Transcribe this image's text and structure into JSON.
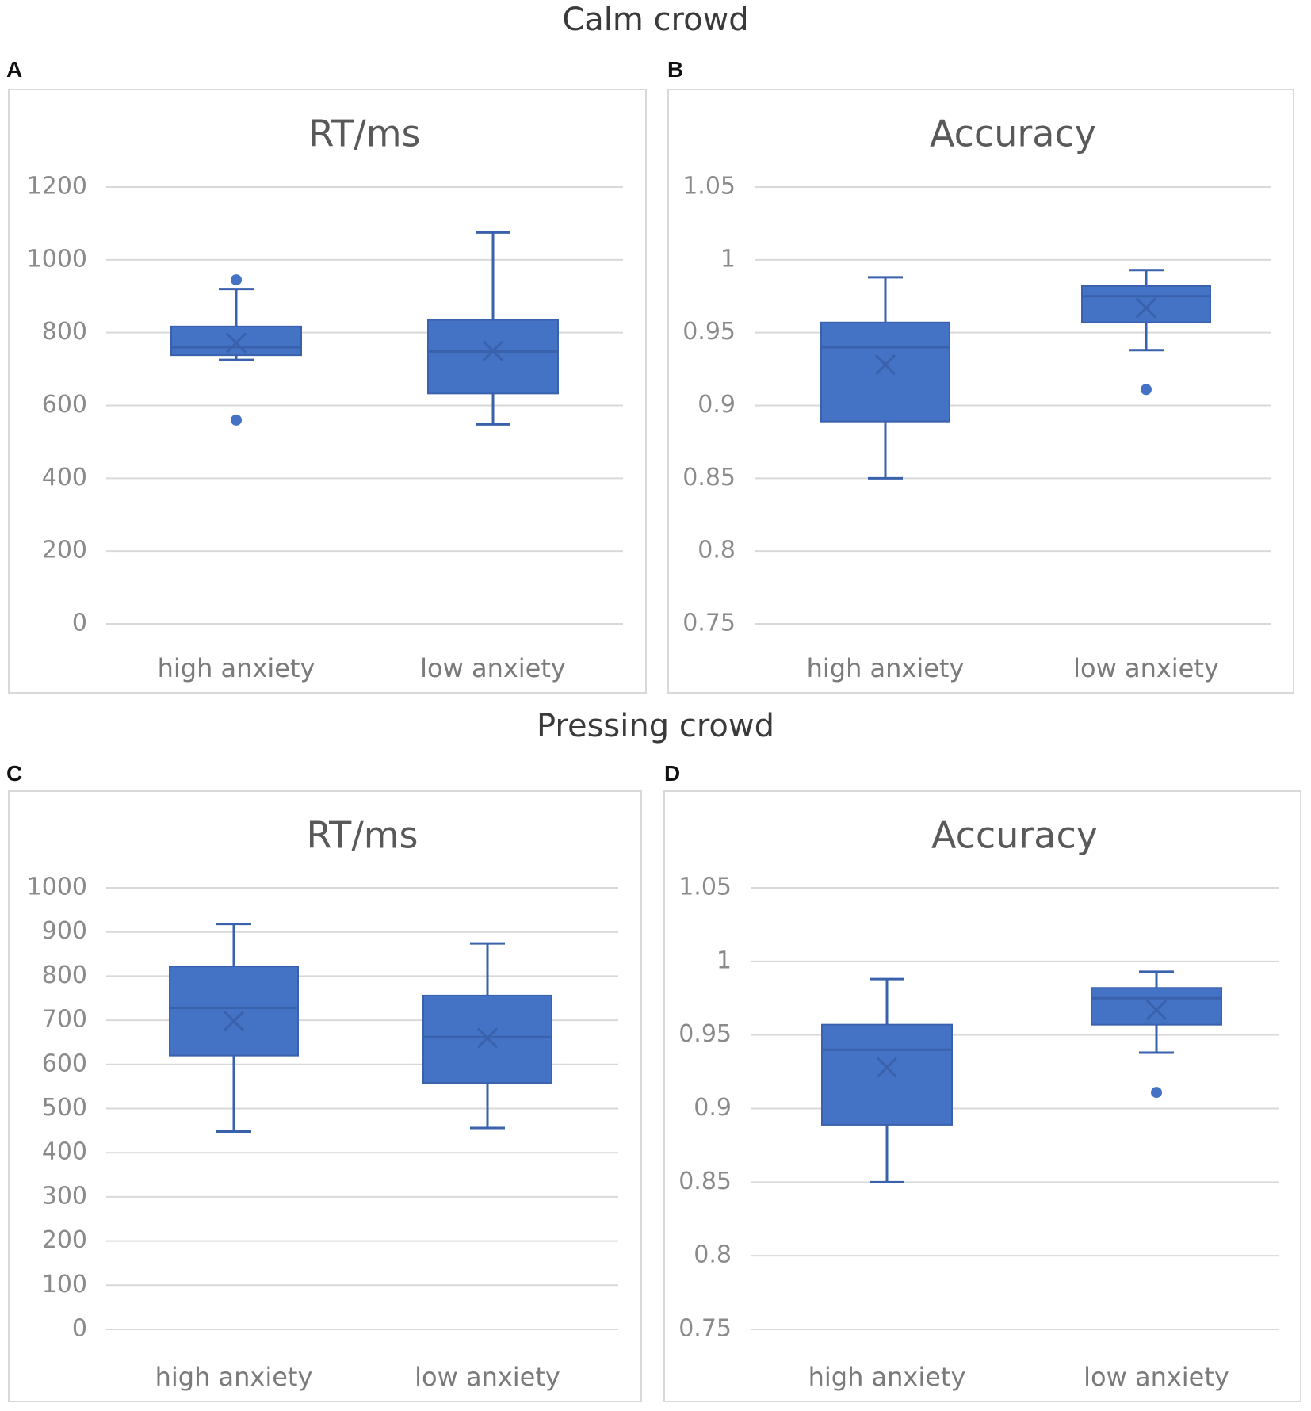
{
  "section_titles": {
    "top": "Calm crowd",
    "bottom": "Pressing crowd"
  },
  "colors": {
    "box": "#4472c4",
    "edge": "#3a62ac",
    "grid": "#d9d9d9",
    "frame": "#d9d9d9"
  },
  "chart_data": [
    {
      "panel": "A",
      "type": "box",
      "title": "RT/ms",
      "categories": [
        "high anxiety",
        "low anxiety"
      ],
      "ylim": [
        0,
        1200
      ],
      "yticks": [
        "0",
        "200",
        "400",
        "600",
        "800",
        "1000",
        "1200"
      ],
      "tick_values": [
        0,
        200,
        400,
        600,
        800,
        1000,
        1200
      ],
      "boxes": [
        {
          "category": "high anxiety",
          "min": 725,
          "q1": 738,
          "median": 760,
          "q3": 817,
          "max": 920,
          "mean": 772,
          "outliers": [
            945,
            560
          ]
        },
        {
          "category": "low anxiety",
          "min": 548,
          "q1": 633,
          "median": 748,
          "q3": 835,
          "max": 1075,
          "mean": 750,
          "outliers": []
        }
      ]
    },
    {
      "panel": "B",
      "type": "box",
      "title": "Accuracy",
      "categories": [
        "high anxiety",
        "low anxiety"
      ],
      "ylim": [
        0.75,
        1.05
      ],
      "yticks": [
        "0.75",
        "0.8",
        "0.85",
        "0.9",
        "0.95",
        "1",
        "1.05"
      ],
      "tick_values": [
        0.75,
        0.8,
        0.85,
        0.9,
        0.95,
        1.0,
        1.05
      ],
      "boxes": [
        {
          "category": "high anxiety",
          "min": 0.85,
          "q1": 0.889,
          "median": 0.94,
          "q3": 0.957,
          "max": 0.988,
          "mean": 0.928,
          "outliers": []
        },
        {
          "category": "low anxiety",
          "min": 0.938,
          "q1": 0.957,
          "median": 0.975,
          "q3": 0.982,
          "max": 0.993,
          "mean": 0.967,
          "outliers": [
            0.911
          ]
        }
      ]
    },
    {
      "panel": "C",
      "type": "box",
      "title": "RT/ms",
      "categories": [
        "high anxiety",
        "low anxiety"
      ],
      "ylim": [
        0,
        1000
      ],
      "yticks": [
        "0",
        "100",
        "200",
        "300",
        "400",
        "500",
        "600",
        "700",
        "800",
        "900",
        "1000"
      ],
      "tick_values": [
        0,
        100,
        200,
        300,
        400,
        500,
        600,
        700,
        800,
        900,
        1000
      ],
      "boxes": [
        {
          "category": "high anxiety",
          "min": 448,
          "q1": 620,
          "median": 728,
          "q3": 822,
          "max": 918,
          "mean": 698,
          "outliers": []
        },
        {
          "category": "low anxiety",
          "min": 456,
          "q1": 558,
          "median": 662,
          "q3": 756,
          "max": 874,
          "mean": 660,
          "outliers": []
        }
      ]
    },
    {
      "panel": "D",
      "type": "box",
      "title": "Accuracy",
      "categories": [
        "high anxiety",
        "low anxiety"
      ],
      "ylim": [
        0.75,
        1.05
      ],
      "yticks": [
        "0.75",
        "0.8",
        "0.85",
        "0.9",
        "0.95",
        "1",
        "1.05"
      ],
      "tick_values": [
        0.75,
        0.8,
        0.85,
        0.9,
        0.95,
        1.0,
        1.05
      ],
      "boxes": [
        {
          "category": "high anxiety",
          "min": 0.85,
          "q1": 0.889,
          "median": 0.94,
          "q3": 0.957,
          "max": 0.988,
          "mean": 0.928,
          "outliers": []
        },
        {
          "category": "low anxiety",
          "min": 0.938,
          "q1": 0.957,
          "median": 0.975,
          "q3": 0.982,
          "max": 0.993,
          "mean": 0.967,
          "outliers": [
            0.911
          ]
        }
      ]
    }
  ]
}
